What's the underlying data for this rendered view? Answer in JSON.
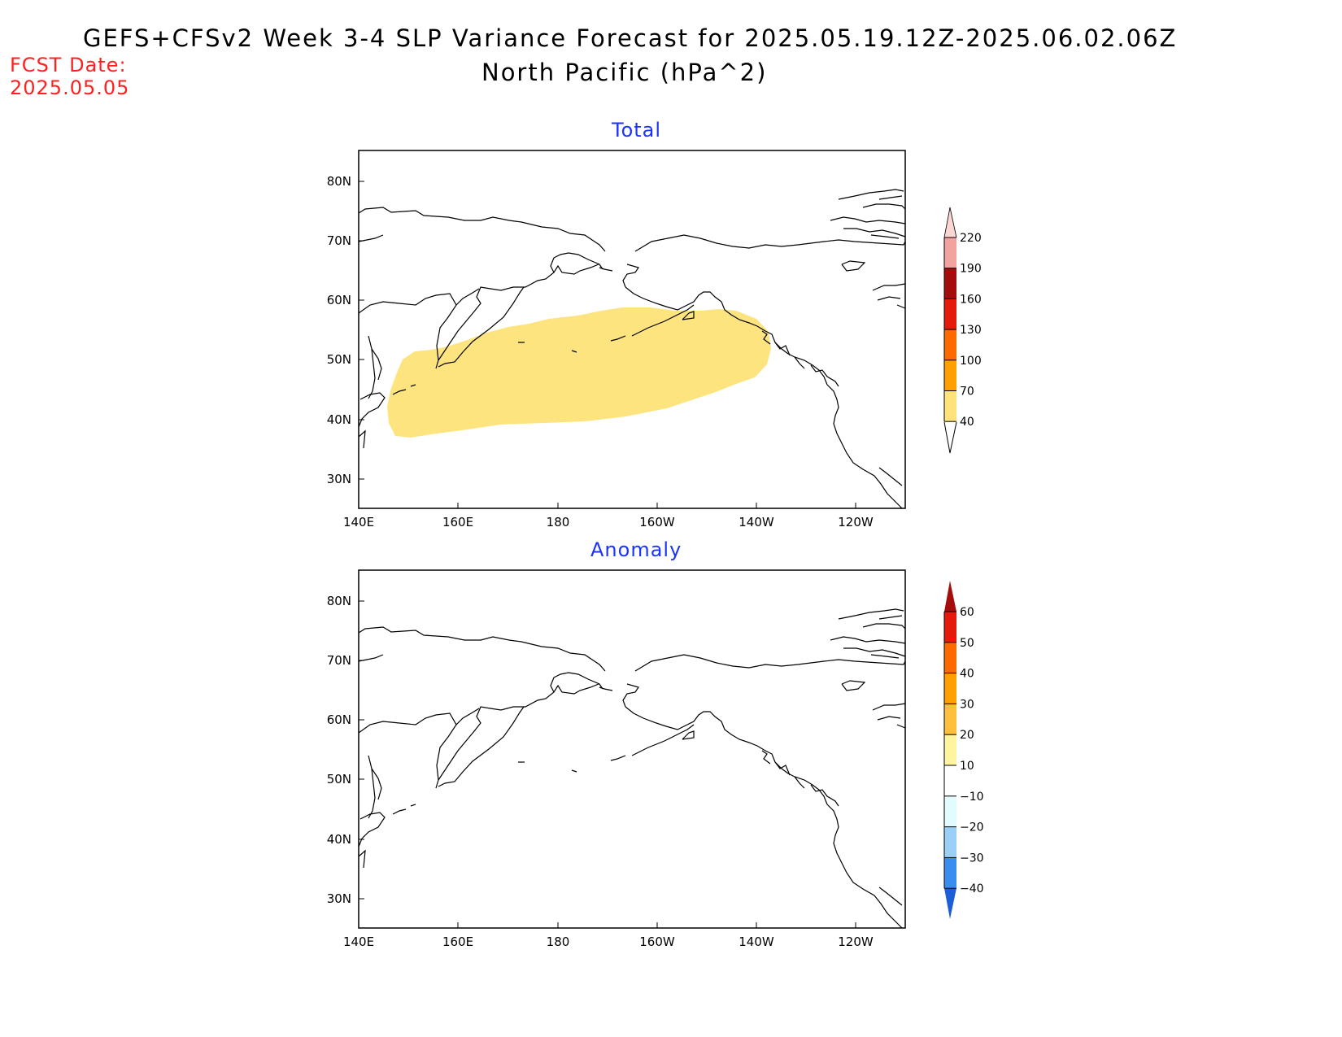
{
  "header": {
    "title_line1": "GEFS+CFSv2 Week 3-4 SLP Variance Forecast for 2025.05.19.12Z-2025.06.02.06Z",
    "title_line2": "North Pacific (hPa^2)",
    "fcst_label": "FCST Date:",
    "fcst_value": "2025.05.05"
  },
  "panels": [
    {
      "title": "Total",
      "lat_labels": [
        "80N",
        "70N",
        "60N",
        "50N",
        "40N",
        "30N"
      ],
      "lon_labels": [
        "140E",
        "160E",
        "180",
        "160W",
        "140W",
        "120W"
      ],
      "colorbar": {
        "labels": [
          "220",
          "190",
          "160",
          "130",
          "100",
          "70",
          "40"
        ],
        "colors": [
          "#fbd7d2",
          "#f2a3a0",
          "#a50c0c",
          "#e61a0a",
          "#ff6a00",
          "#ffa000",
          "#ffe27a"
        ],
        "extend": "both"
      },
      "feature": {
        "description_value": 40,
        "fill_color": "#fde47f"
      }
    },
    {
      "title": "Anomaly",
      "lat_labels": [
        "80N",
        "70N",
        "60N",
        "50N",
        "40N",
        "30N"
      ],
      "lon_labels": [
        "140E",
        "160E",
        "180",
        "160W",
        "140W",
        "120W"
      ],
      "colorbar": {
        "labels": [
          "60",
          "50",
          "40",
          "30",
          "20",
          "10",
          "−10",
          "−20",
          "−30",
          "−40"
        ],
        "colors": [
          "#a50c0c",
          "#e61a0a",
          "#ff6a00",
          "#ffa000",
          "#ffbf3c",
          "#fff59e",
          "#ffffff",
          "#e2fbff",
          "#9ad0f8",
          "#3a8cf0",
          "#1a5ed8"
        ],
        "extend": "both"
      }
    }
  ]
}
